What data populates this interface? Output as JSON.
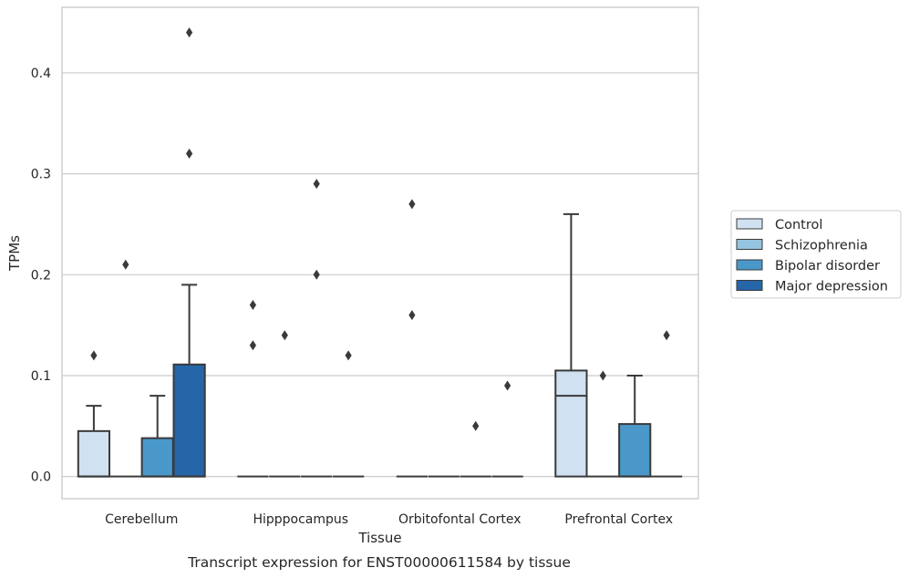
{
  "chart_data": {
    "type": "box",
    "title": "Transcript expression for ENST00000611584 by tissue",
    "xlabel": "Tissue",
    "ylabel": "TPMs",
    "ylim": [
      -0.022,
      0.465
    ],
    "yticks": [
      "0.0",
      "0.1",
      "0.2",
      "0.3",
      "0.4"
    ],
    "ytick_values": [
      0.0,
      0.1,
      0.2,
      0.3,
      0.4
    ],
    "grid": true,
    "legend_position": "right",
    "categories": [
      "Cerebellum",
      "Hipppocampus",
      "Orbitofontal Cortex",
      "Prefrontal Cortex"
    ],
    "series": [
      {
        "name": "Control",
        "color": "#d0e1f2",
        "boxes": [
          {
            "q1": 0.0,
            "median": 0.0,
            "q3": 0.045,
            "whisker_low": 0.0,
            "whisker_high": 0.07,
            "outliers": [
              0.12
            ]
          },
          {
            "q1": 0.0,
            "median": 0.0,
            "q3": 0.0,
            "whisker_low": 0.0,
            "whisker_high": 0.0,
            "outliers": [
              0.13,
              0.17
            ]
          },
          {
            "q1": 0.0,
            "median": 0.0,
            "q3": 0.0,
            "whisker_low": 0.0,
            "whisker_high": 0.0,
            "outliers": [
              0.16,
              0.27
            ]
          },
          {
            "q1": 0.0,
            "median": 0.08,
            "q3": 0.105,
            "whisker_low": 0.0,
            "whisker_high": 0.26,
            "outliers": []
          }
        ]
      },
      {
        "name": "Schizophrenia",
        "color": "#94c4df",
        "boxes": [
          {
            "q1": 0.0,
            "median": 0.0,
            "q3": 0.0,
            "whisker_low": 0.0,
            "whisker_high": 0.0,
            "outliers": [
              0.21
            ]
          },
          {
            "q1": 0.0,
            "median": 0.0,
            "q3": 0.0,
            "whisker_low": 0.0,
            "whisker_high": 0.0,
            "outliers": [
              0.14
            ]
          },
          {
            "q1": 0.0,
            "median": 0.0,
            "q3": 0.0,
            "whisker_low": 0.0,
            "whisker_high": 0.0,
            "outliers": []
          },
          {
            "q1": 0.0,
            "median": 0.0,
            "q3": 0.0,
            "whisker_low": 0.0,
            "whisker_high": 0.0,
            "outliers": [
              0.1
            ]
          }
        ]
      },
      {
        "name": "Bipolar disorder",
        "color": "#4a98c9",
        "boxes": [
          {
            "q1": 0.0,
            "median": 0.0,
            "q3": 0.038,
            "whisker_low": 0.0,
            "whisker_high": 0.08,
            "outliers": []
          },
          {
            "q1": 0.0,
            "median": 0.0,
            "q3": 0.0,
            "whisker_low": 0.0,
            "whisker_high": 0.0,
            "outliers": [
              0.2,
              0.29
            ]
          },
          {
            "q1": 0.0,
            "median": 0.0,
            "q3": 0.0,
            "whisker_low": 0.0,
            "whisker_high": 0.0,
            "outliers": [
              0.05
            ]
          },
          {
            "q1": 0.0,
            "median": 0.0,
            "q3": 0.052,
            "whisker_low": 0.0,
            "whisker_high": 0.1,
            "outliers": []
          }
        ]
      },
      {
        "name": "Major depression",
        "color": "#2566a9",
        "boxes": [
          {
            "q1": 0.0,
            "median": 0.0,
            "q3": 0.111,
            "whisker_low": 0.0,
            "whisker_high": 0.19,
            "outliers": [
              0.32,
              0.44
            ]
          },
          {
            "q1": 0.0,
            "median": 0.0,
            "q3": 0.0,
            "whisker_low": 0.0,
            "whisker_high": 0.0,
            "outliers": [
              0.12
            ]
          },
          {
            "q1": 0.0,
            "median": 0.0,
            "q3": 0.0,
            "whisker_low": 0.0,
            "whisker_high": 0.0,
            "outliers": [
              0.09
            ]
          },
          {
            "q1": 0.0,
            "median": 0.0,
            "q3": 0.0,
            "whisker_low": 0.0,
            "whisker_high": 0.0,
            "outliers": [
              0.14
            ]
          }
        ]
      }
    ]
  }
}
